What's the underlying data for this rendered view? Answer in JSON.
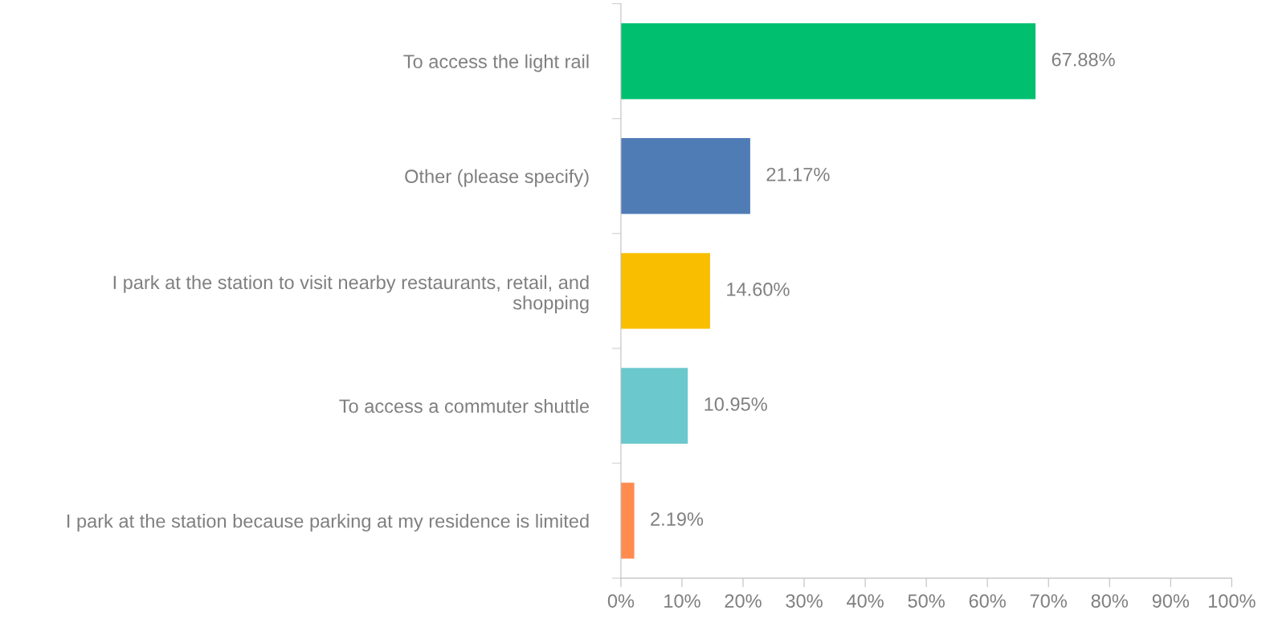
{
  "chart_data": {
    "type": "bar",
    "orientation": "horizontal",
    "categories": [
      "To access the light rail",
      "Other (please specify)",
      "I park at the station to visit nearby restaurants, retail, and\nshopping",
      "To access a commuter shuttle",
      "I park at the station because parking at my residence is limited"
    ],
    "values": [
      67.88,
      21.17,
      14.6,
      10.95,
      2.19
    ],
    "colors": [
      "#00bf6f",
      "#507cb6",
      "#f9be00",
      "#6bc8cd",
      "#ff8b4f"
    ],
    "value_labels": [
      "67.88%",
      "21.17%",
      "14.60%",
      "10.95%",
      "2.19%"
    ],
    "xlim": [
      0,
      100
    ],
    "xticks": [
      {
        "value": 0,
        "label": "0%"
      },
      {
        "value": 10,
        "label": "10%"
      },
      {
        "value": 20,
        "label": "20%"
      },
      {
        "value": 30,
        "label": "30%"
      },
      {
        "value": 40,
        "label": "40%"
      },
      {
        "value": 50,
        "label": "50%"
      },
      {
        "value": 60,
        "label": "60%"
      },
      {
        "value": 70,
        "label": "70%"
      },
      {
        "value": 80,
        "label": "80%"
      },
      {
        "value": 90,
        "label": "90%"
      },
      {
        "value": 100,
        "label": "100%"
      }
    ],
    "grid": false,
    "legend": false
  }
}
